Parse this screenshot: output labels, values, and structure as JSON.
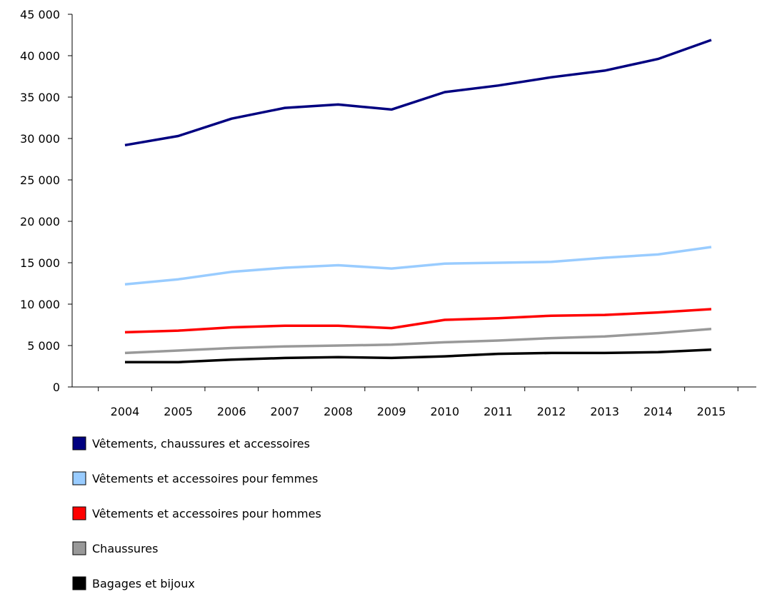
{
  "chart_data": {
    "type": "line",
    "title": "",
    "xlabel": "",
    "ylabel": "",
    "ylim": [
      0,
      45000
    ],
    "y_ticks": [
      0,
      5000,
      10000,
      15000,
      20000,
      25000,
      30000,
      35000,
      40000,
      45000
    ],
    "y_tick_labels": [
      "0",
      "5 000",
      "10 000",
      "15 000",
      "20 000",
      "25 000",
      "30 000",
      "35 000",
      "40 000",
      "45 000"
    ],
    "grid": false,
    "legend_position": "bottom",
    "categories": [
      "2004",
      "2005",
      "2006",
      "2007",
      "2008",
      "2009",
      "2010",
      "2011",
      "2012",
      "2013",
      "2014",
      "2015"
    ],
    "series": [
      {
        "name": "Vêtements, chaussures et accessoires",
        "color": "#000080",
        "values": [
          29200,
          30300,
          32400,
          33700,
          34100,
          33500,
          35600,
          36400,
          37400,
          38200,
          39600,
          41900
        ]
      },
      {
        "name": "Vêtements et accessoires pour femmes",
        "color": "#99CCFF",
        "values": [
          12400,
          13000,
          13900,
          14400,
          14700,
          14300,
          14900,
          15000,
          15100,
          15600,
          16000,
          16900
        ]
      },
      {
        "name": "Vêtements et accessoires pour hommes",
        "color": "#FF0000",
        "values": [
          6600,
          6800,
          7200,
          7400,
          7400,
          7100,
          8100,
          8300,
          8600,
          8700,
          9000,
          9400
        ]
      },
      {
        "name": "Chaussures",
        "color": "#999999",
        "values": [
          4100,
          4400,
          4700,
          4900,
          5000,
          5100,
          5400,
          5600,
          5900,
          6100,
          6500,
          7000
        ]
      },
      {
        "name": "Bagages et bijoux",
        "color": "#000000",
        "values": [
          3000,
          3000,
          3300,
          3500,
          3600,
          3500,
          3700,
          4000,
          4100,
          4100,
          4200,
          4500
        ]
      }
    ]
  }
}
